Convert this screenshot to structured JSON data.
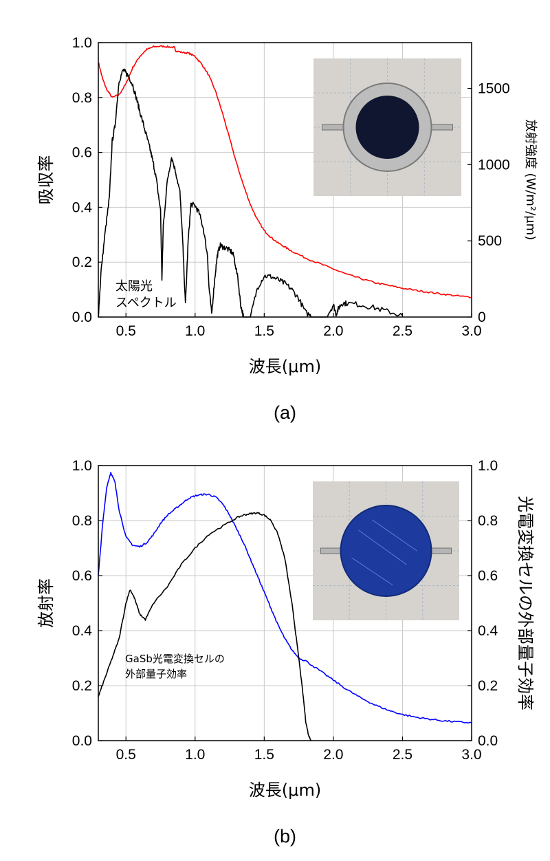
{
  "chart_data": [
    {
      "panel": "(a)",
      "type": "line",
      "xlabel": "波長(μm)",
      "ylabel": "吸収率",
      "y2label": "放射強度 (W/m²/μm)",
      "xlim": [
        0.3,
        3.0
      ],
      "ylim": [
        0.0,
        1.0
      ],
      "y2lim": [
        0,
        1800
      ],
      "x_ticks": [
        "0.5",
        "1.0",
        "1.5",
        "2.0",
        "2.5",
        "3.0"
      ],
      "y_ticks": [
        "0.0",
        "0.2",
        "0.4",
        "0.6",
        "0.8",
        "1.0"
      ],
      "y2_ticks": [
        "0",
        "500",
        "1000",
        "1500"
      ],
      "grid": true,
      "annotation": [
        "太陽光",
        "スペクトル"
      ],
      "inset": "photo of absorber sample (dark disc in silver ring)",
      "series": [
        {
          "axis": "left",
          "color": "#ff0000",
          "x": [
            0.3,
            0.33,
            0.36,
            0.4,
            0.45,
            0.5,
            0.55,
            0.6,
            0.65,
            0.7,
            0.75,
            0.8,
            0.85,
            0.86,
            0.9,
            0.95,
            1.0,
            1.05,
            1.1,
            1.15,
            1.2,
            1.25,
            1.3,
            1.35,
            1.4,
            1.45,
            1.5,
            1.55,
            1.6,
            1.65,
            1.7,
            1.8,
            1.9,
            2.0,
            2.1,
            2.2,
            2.3,
            2.4,
            2.5,
            2.6,
            2.7,
            2.8,
            2.9,
            3.0
          ],
          "values": [
            0.93,
            0.87,
            0.83,
            0.8,
            0.81,
            0.85,
            0.91,
            0.95,
            0.975,
            0.985,
            0.987,
            0.985,
            0.983,
            0.97,
            0.965,
            0.962,
            0.95,
            0.92,
            0.88,
            0.82,
            0.74,
            0.65,
            0.56,
            0.48,
            0.41,
            0.355,
            0.315,
            0.29,
            0.27,
            0.255,
            0.24,
            0.215,
            0.195,
            0.175,
            0.155,
            0.14,
            0.125,
            0.115,
            0.105,
            0.097,
            0.09,
            0.083,
            0.077,
            0.072
          ]
        },
        {
          "axis": "right",
          "color": "#000000",
          "x": [
            0.3,
            0.32,
            0.35,
            0.38,
            0.4,
            0.42,
            0.45,
            0.48,
            0.5,
            0.52,
            0.55,
            0.58,
            0.6,
            0.63,
            0.66,
            0.68,
            0.7,
            0.72,
            0.75,
            0.76,
            0.77,
            0.8,
            0.83,
            0.86,
            0.89,
            0.91,
            0.93,
            0.95,
            0.97,
            1.0,
            1.03,
            1.06,
            1.09,
            1.1,
            1.12,
            1.14,
            1.16,
            1.18,
            1.2,
            1.23,
            1.26,
            1.28,
            1.31,
            1.33,
            1.35,
            1.37,
            1.4,
            1.45,
            1.5,
            1.55,
            1.6,
            1.65,
            1.7,
            1.75,
            1.8,
            1.85,
            1.95,
            2.0,
            2.02,
            2.04,
            2.06,
            2.1,
            2.2,
            2.3,
            2.4,
            2.5
          ],
          "values": [
            0,
            300,
            560,
            780,
            1150,
            1250,
            1550,
            1620,
            1600,
            1580,
            1520,
            1420,
            1350,
            1250,
            1150,
            1080,
            1000,
            900,
            700,
            250,
            600,
            900,
            1050,
            950,
            820,
            500,
            80,
            500,
            740,
            730,
            680,
            580,
            400,
            200,
            20,
            230,
            400,
            470,
            460,
            450,
            430,
            400,
            250,
            80,
            0,
            0,
            0,
            190,
            270,
            265,
            245,
            220,
            180,
            120,
            30,
            0,
            0,
            80,
            20,
            60,
            90,
            90,
            80,
            60,
            35,
            10
          ]
        }
      ]
    },
    {
      "panel": "(b)",
      "type": "line",
      "xlabel": "波長(μm)",
      "ylabel": "放射率",
      "y2label": "光電変換セルの外部量子効率",
      "xlim": [
        0.3,
        3.0
      ],
      "ylim": [
        0.0,
        1.0
      ],
      "y2lim": [
        0.0,
        1.0
      ],
      "x_ticks": [
        "0.5",
        "1.0",
        "1.5",
        "2.0",
        "2.5",
        "3.0"
      ],
      "y_ticks": [
        "0.0",
        "0.2",
        "0.4",
        "0.6",
        "0.8",
        "1.0"
      ],
      "y2_ticks": [
        "0.0",
        "0.2",
        "0.4",
        "0.6",
        "0.8",
        "1.0"
      ],
      "grid": true,
      "annotation": [
        "GaSb光電変換セルの",
        "外部量子効率"
      ],
      "inset": "photo of emitter sample (blue disc)",
      "series": [
        {
          "axis": "left",
          "color": "#0000ff",
          "x": [
            0.3,
            0.33,
            0.36,
            0.39,
            0.42,
            0.45,
            0.5,
            0.55,
            0.6,
            0.65,
            0.7,
            0.75,
            0.8,
            0.85,
            0.9,
            0.95,
            1.0,
            1.05,
            1.1,
            1.15,
            1.2,
            1.25,
            1.3,
            1.35,
            1.4,
            1.45,
            1.5,
            1.55,
            1.6,
            1.65,
            1.7,
            1.75,
            1.8,
            1.9,
            2.0,
            2.1,
            2.2,
            2.3,
            2.4,
            2.5,
            2.6,
            2.7,
            2.8,
            2.9,
            3.0
          ],
          "values": [
            0.6,
            0.78,
            0.92,
            0.975,
            0.94,
            0.84,
            0.74,
            0.71,
            0.705,
            0.72,
            0.75,
            0.79,
            0.82,
            0.84,
            0.86,
            0.88,
            0.89,
            0.895,
            0.895,
            0.885,
            0.86,
            0.82,
            0.77,
            0.72,
            0.66,
            0.6,
            0.54,
            0.48,
            0.42,
            0.37,
            0.33,
            0.3,
            0.29,
            0.255,
            0.22,
            0.185,
            0.155,
            0.13,
            0.11,
            0.095,
            0.085,
            0.078,
            0.072,
            0.068,
            0.065
          ]
        },
        {
          "axis": "right",
          "color": "#000000",
          "x": [
            0.3,
            0.35,
            0.4,
            0.45,
            0.5,
            0.53,
            0.56,
            0.6,
            0.64,
            0.7,
            0.8,
            0.9,
            1.0,
            1.1,
            1.2,
            1.3,
            1.35,
            1.4,
            1.45,
            1.5,
            1.55,
            1.6,
            1.65,
            1.7,
            1.72,
            1.75,
            1.78,
            1.8,
            1.82,
            1.84
          ],
          "values": [
            0.16,
            0.23,
            0.3,
            0.37,
            0.5,
            0.55,
            0.52,
            0.46,
            0.44,
            0.5,
            0.56,
            0.64,
            0.7,
            0.75,
            0.78,
            0.81,
            0.82,
            0.825,
            0.828,
            0.82,
            0.8,
            0.75,
            0.66,
            0.5,
            0.42,
            0.3,
            0.17,
            0.07,
            0.02,
            0.0
          ]
        }
      ]
    }
  ]
}
